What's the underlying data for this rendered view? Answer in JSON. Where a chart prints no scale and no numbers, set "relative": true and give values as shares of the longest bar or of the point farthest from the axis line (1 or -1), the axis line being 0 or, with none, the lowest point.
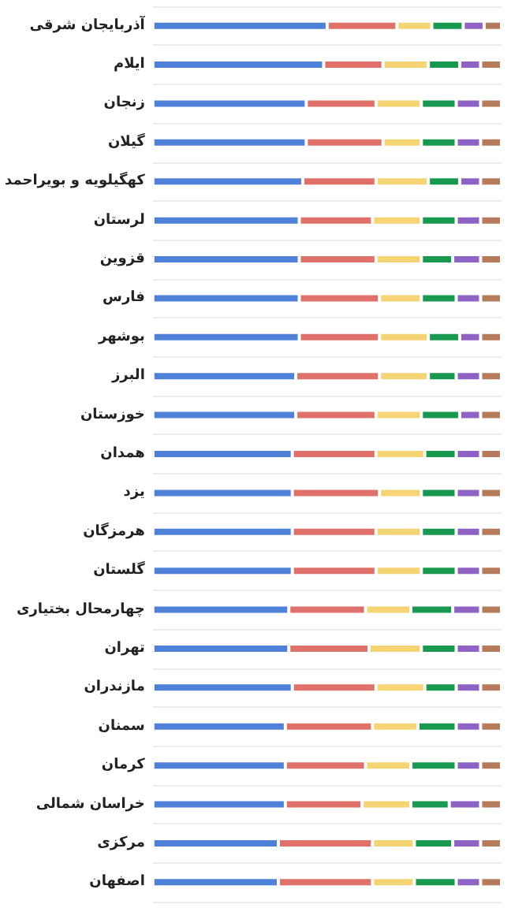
{
  "chart_data": {
    "type": "bar",
    "orientation": "horizontal",
    "stacked": true,
    "relative": true,
    "grid": "y",
    "categories": [
      "آذربایجان شرقی",
      "ایلام",
      "زنجان",
      "گیلان",
      "کهگیلویه و بویراحمد",
      "لرستان",
      "قزوین",
      "فارس",
      "بوشهر",
      "البرز",
      "خوزستان",
      "همدان",
      "یزد",
      "هرمزگان",
      "گلستان",
      "چهارمحال بختیاری",
      "تهران",
      "مازندران",
      "سمنان",
      "کرمان",
      "خراسان شمالی",
      "مرکزی",
      "اصفهان"
    ],
    "series": [
      {
        "color": "#4f81d9",
        "values": [
          0.5,
          0.49,
          0.44,
          0.44,
          0.43,
          0.42,
          0.42,
          0.42,
          0.42,
          0.41,
          0.41,
          0.4,
          0.4,
          0.4,
          0.4,
          0.39,
          0.39,
          0.4,
          0.38,
          0.38,
          0.38,
          0.36,
          0.36
        ]
      },
      {
        "color": "#e0706a",
        "values": [
          0.2,
          0.17,
          0.2,
          0.22,
          0.21,
          0.21,
          0.22,
          0.23,
          0.23,
          0.24,
          0.23,
          0.24,
          0.25,
          0.24,
          0.24,
          0.22,
          0.23,
          0.24,
          0.25,
          0.23,
          0.22,
          0.27,
          0.27
        ]
      },
      {
        "color": "#f5d473",
        "values": [
          0.1,
          0.13,
          0.13,
          0.11,
          0.15,
          0.14,
          0.13,
          0.12,
          0.14,
          0.14,
          0.13,
          0.14,
          0.12,
          0.13,
          0.13,
          0.13,
          0.15,
          0.14,
          0.13,
          0.13,
          0.14,
          0.12,
          0.12
        ]
      },
      {
        "color": "#17994f",
        "values": [
          0.09,
          0.09,
          0.1,
          0.1,
          0.09,
          0.1,
          0.09,
          0.1,
          0.09,
          0.08,
          0.11,
          0.09,
          0.1,
          0.1,
          0.1,
          0.12,
          0.1,
          0.09,
          0.11,
          0.13,
          0.11,
          0.11,
          0.12
        ]
      },
      {
        "color": "#8e63c4",
        "values": [
          0.06,
          0.06,
          0.07,
          0.07,
          0.06,
          0.07,
          0.08,
          0.07,
          0.06,
          0.07,
          0.06,
          0.07,
          0.07,
          0.07,
          0.07,
          0.08,
          0.07,
          0.07,
          0.07,
          0.07,
          0.09,
          0.08,
          0.07
        ]
      },
      {
        "color": "#b57b5a",
        "values": [
          0.05,
          0.06,
          0.06,
          0.06,
          0.06,
          0.06,
          0.06,
          0.06,
          0.06,
          0.06,
          0.06,
          0.06,
          0.06,
          0.06,
          0.06,
          0.06,
          0.06,
          0.06,
          0.06,
          0.06,
          0.06,
          0.06,
          0.06
        ]
      }
    ]
  }
}
